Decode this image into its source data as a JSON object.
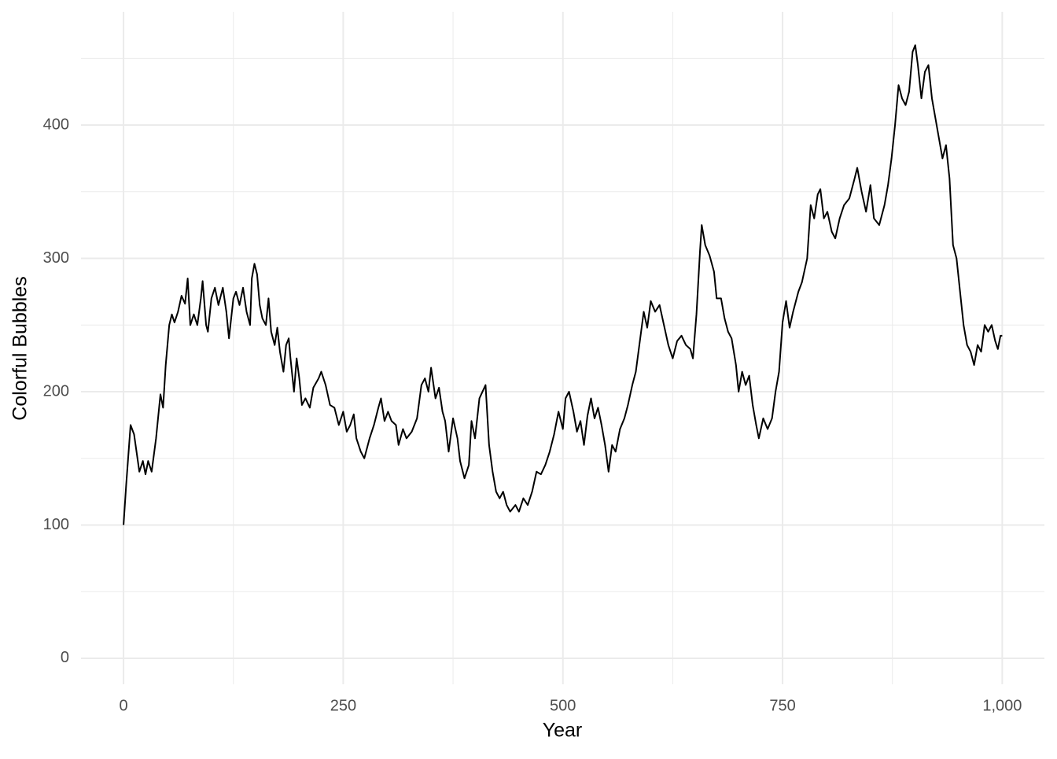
{
  "chart_data": {
    "type": "line",
    "x_label": "Year",
    "y_label": "Colorful Bubbles",
    "color": "#000000",
    "grid": true,
    "minor_grid": true,
    "x": [
      0,
      3,
      8,
      12,
      18,
      22,
      25,
      28,
      32,
      37,
      42,
      45,
      48,
      52,
      55,
      58,
      62,
      66,
      70,
      73,
      76,
      80,
      84,
      88,
      90,
      94,
      96,
      100,
      104,
      108,
      113,
      117,
      120,
      125,
      128,
      132,
      136,
      140,
      144,
      146,
      149,
      152,
      155,
      158,
      162,
      165,
      168,
      172,
      175,
      178,
      182,
      185,
      188,
      190,
      194,
      197,
      200,
      203,
      207,
      212,
      216,
      222,
      225,
      230,
      235,
      240,
      245,
      250,
      254,
      258,
      262,
      265,
      270,
      274,
      280,
      285,
      290,
      293,
      297,
      301,
      305,
      310,
      313,
      318,
      322,
      328,
      334,
      339,
      343,
      347,
      350,
      355,
      359,
      363,
      366,
      370,
      375,
      380,
      383,
      388,
      393,
      396,
      400,
      405,
      412,
      416,
      420,
      424,
      428,
      432,
      436,
      440,
      446,
      450,
      455,
      460,
      465,
      470,
      475,
      480,
      485,
      490,
      495,
      500,
      503,
      507,
      512,
      516,
      520,
      524,
      528,
      532,
      536,
      540,
      544,
      548,
      552,
      556,
      560,
      565,
      570,
      574,
      579,
      583,
      588,
      592,
      596,
      600,
      605,
      610,
      615,
      620,
      625,
      630,
      635,
      640,
      645,
      648,
      652,
      656,
      658,
      662,
      667,
      672,
      675,
      680,
      684,
      688,
      692,
      697,
      700,
      704,
      708,
      712,
      716,
      720,
      723,
      728,
      733,
      738,
      742,
      746,
      750,
      754,
      758,
      762,
      768,
      772,
      778,
      782,
      786,
      790,
      793,
      797,
      801,
      806,
      810,
      815,
      820,
      826,
      832,
      835,
      840,
      845,
      850,
      854,
      860,
      866,
      870,
      874,
      878,
      882,
      886,
      890,
      894,
      898,
      901,
      904,
      908,
      912,
      916,
      920,
      924,
      928,
      932,
      936,
      940,
      944,
      948,
      952,
      956,
      960,
      964,
      968,
      972,
      976,
      980,
      984,
      988,
      992,
      995,
      998,
      1000
    ],
    "values": [
      100,
      130,
      175,
      168,
      140,
      148,
      138,
      148,
      140,
      165,
      198,
      188,
      220,
      250,
      258,
      252,
      260,
      272,
      266,
      285,
      250,
      258,
      250,
      270,
      283,
      250,
      245,
      270,
      278,
      265,
      278,
      260,
      240,
      270,
      275,
      265,
      278,
      260,
      250,
      285,
      296,
      288,
      265,
      255,
      250,
      270,
      245,
      235,
      248,
      230,
      215,
      235,
      240,
      225,
      200,
      225,
      210,
      190,
      195,
      188,
      203,
      210,
      215,
      205,
      190,
      188,
      175,
      185,
      170,
      175,
      183,
      165,
      155,
      150,
      165,
      175,
      188,
      195,
      178,
      185,
      178,
      175,
      160,
      172,
      165,
      170,
      180,
      205,
      210,
      200,
      218,
      195,
      203,
      185,
      178,
      155,
      180,
      165,
      148,
      135,
      145,
      178,
      165,
      195,
      205,
      160,
      140,
      125,
      120,
      125,
      115,
      110,
      115,
      110,
      120,
      115,
      125,
      140,
      138,
      145,
      155,
      168,
      185,
      172,
      195,
      200,
      185,
      170,
      178,
      160,
      182,
      195,
      180,
      188,
      175,
      160,
      140,
      160,
      155,
      172,
      180,
      190,
      205,
      215,
      240,
      260,
      248,
      268,
      260,
      265,
      250,
      235,
      225,
      238,
      242,
      235,
      232,
      225,
      258,
      305,
      325,
      310,
      302,
      290,
      270,
      270,
      255,
      245,
      240,
      220,
      200,
      215,
      205,
      212,
      190,
      175,
      165,
      180,
      172,
      180,
      200,
      215,
      252,
      268,
      248,
      260,
      275,
      282,
      300,
      340,
      330,
      348,
      352,
      330,
      335,
      320,
      315,
      330,
      340,
      345,
      360,
      368,
      350,
      335,
      355,
      330,
      325,
      340,
      355,
      375,
      400,
      430,
      420,
      415,
      425,
      455,
      460,
      445,
      420,
      440,
      445,
      420,
      405,
      390,
      375,
      385,
      360,
      310,
      300,
      275,
      250,
      235,
      230,
      220,
      235,
      230,
      250,
      245,
      250,
      238,
      232,
      242,
      242
    ],
    "xlim": [
      -48.4,
      1048
    ],
    "xticks": [
      0,
      250,
      500,
      750,
      {
        "value": 1000,
        "label": "1,000"
      }
    ],
    "ylim": [
      -19.5,
      485
    ],
    "yticks": [
      0,
      100,
      200,
      300,
      400
    ]
  }
}
